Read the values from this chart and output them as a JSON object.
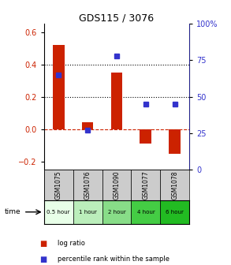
{
  "title": "GDS115 / 3076",
  "samples": [
    "GSM1075",
    "GSM1076",
    "GSM1090",
    "GSM1077",
    "GSM1078"
  ],
  "time_labels": [
    "0.5 hour",
    "1 hour",
    "2 hour",
    "4 hour",
    "6 hour"
  ],
  "time_colors": [
    "#e8ffe8",
    "#bbeebb",
    "#88dd88",
    "#44cc44",
    "#22bb22"
  ],
  "log_ratio": [
    0.52,
    0.04,
    0.35,
    -0.09,
    -0.15
  ],
  "percentile": [
    65,
    27,
    78,
    45,
    45
  ],
  "bar_color": "#cc2200",
  "dot_color": "#3333cc",
  "ylim_left": [
    -0.25,
    0.65
  ],
  "ylim_right": [
    0,
    100
  ],
  "yticks_left": [
    -0.2,
    0.0,
    0.2,
    0.4,
    0.6
  ],
  "yticks_right": [
    0,
    25,
    50,
    75,
    100
  ],
  "sample_bg": "#cccccc",
  "title_fontsize": 9
}
